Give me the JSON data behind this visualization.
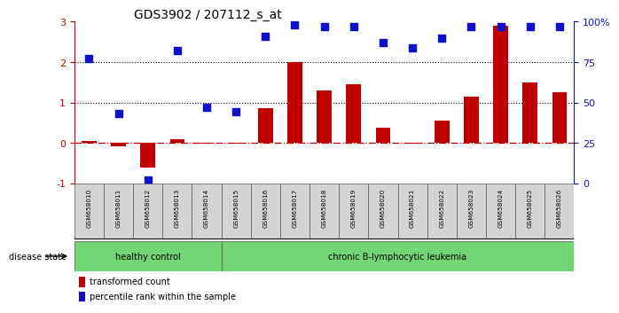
{
  "title": "GDS3902 / 207112_s_at",
  "samples": [
    "GSM658010",
    "GSM658011",
    "GSM658012",
    "GSM658013",
    "GSM658014",
    "GSM658015",
    "GSM658016",
    "GSM658017",
    "GSM658018",
    "GSM658019",
    "GSM658020",
    "GSM658021",
    "GSM658022",
    "GSM658023",
    "GSM658024",
    "GSM658025",
    "GSM658026"
  ],
  "transformed_count": [
    0.05,
    -0.08,
    -0.62,
    0.08,
    -0.03,
    -0.03,
    0.85,
    2.0,
    1.3,
    1.45,
    0.38,
    -0.02,
    0.55,
    1.15,
    2.9,
    1.5,
    1.25
  ],
  "percentile_rank_pct": [
    77,
    43,
    2,
    82,
    47,
    44,
    91,
    98,
    97,
    97,
    87,
    84,
    90,
    97,
    97,
    97,
    97
  ],
  "bar_color": "#c00000",
  "dot_color": "#1010cc",
  "left_ylim": [
    -1,
    3
  ],
  "right_ylim": [
    0,
    100
  ],
  "left_yticks": [
    -1,
    0,
    1,
    2,
    3
  ],
  "right_yticks": [
    0,
    25,
    50,
    75,
    100
  ],
  "right_ytick_labels": [
    "0",
    "25",
    "50",
    "75",
    "100%"
  ],
  "hline_0_style": "-.",
  "hline_0_color": "#c00000",
  "hline_1_style": ":",
  "hline_1_color": "black",
  "hline_2_style": ":",
  "hline_2_color": "black",
  "healthy_count": 5,
  "healthy_label": "healthy control",
  "leukemia_label": "chronic B-lymphocytic leukemia",
  "disease_label": "disease state",
  "legend_bar_label": "transformed count",
  "legend_dot_label": "percentile rank within the sample",
  "bar_width": 0.5,
  "dot_size": 28
}
